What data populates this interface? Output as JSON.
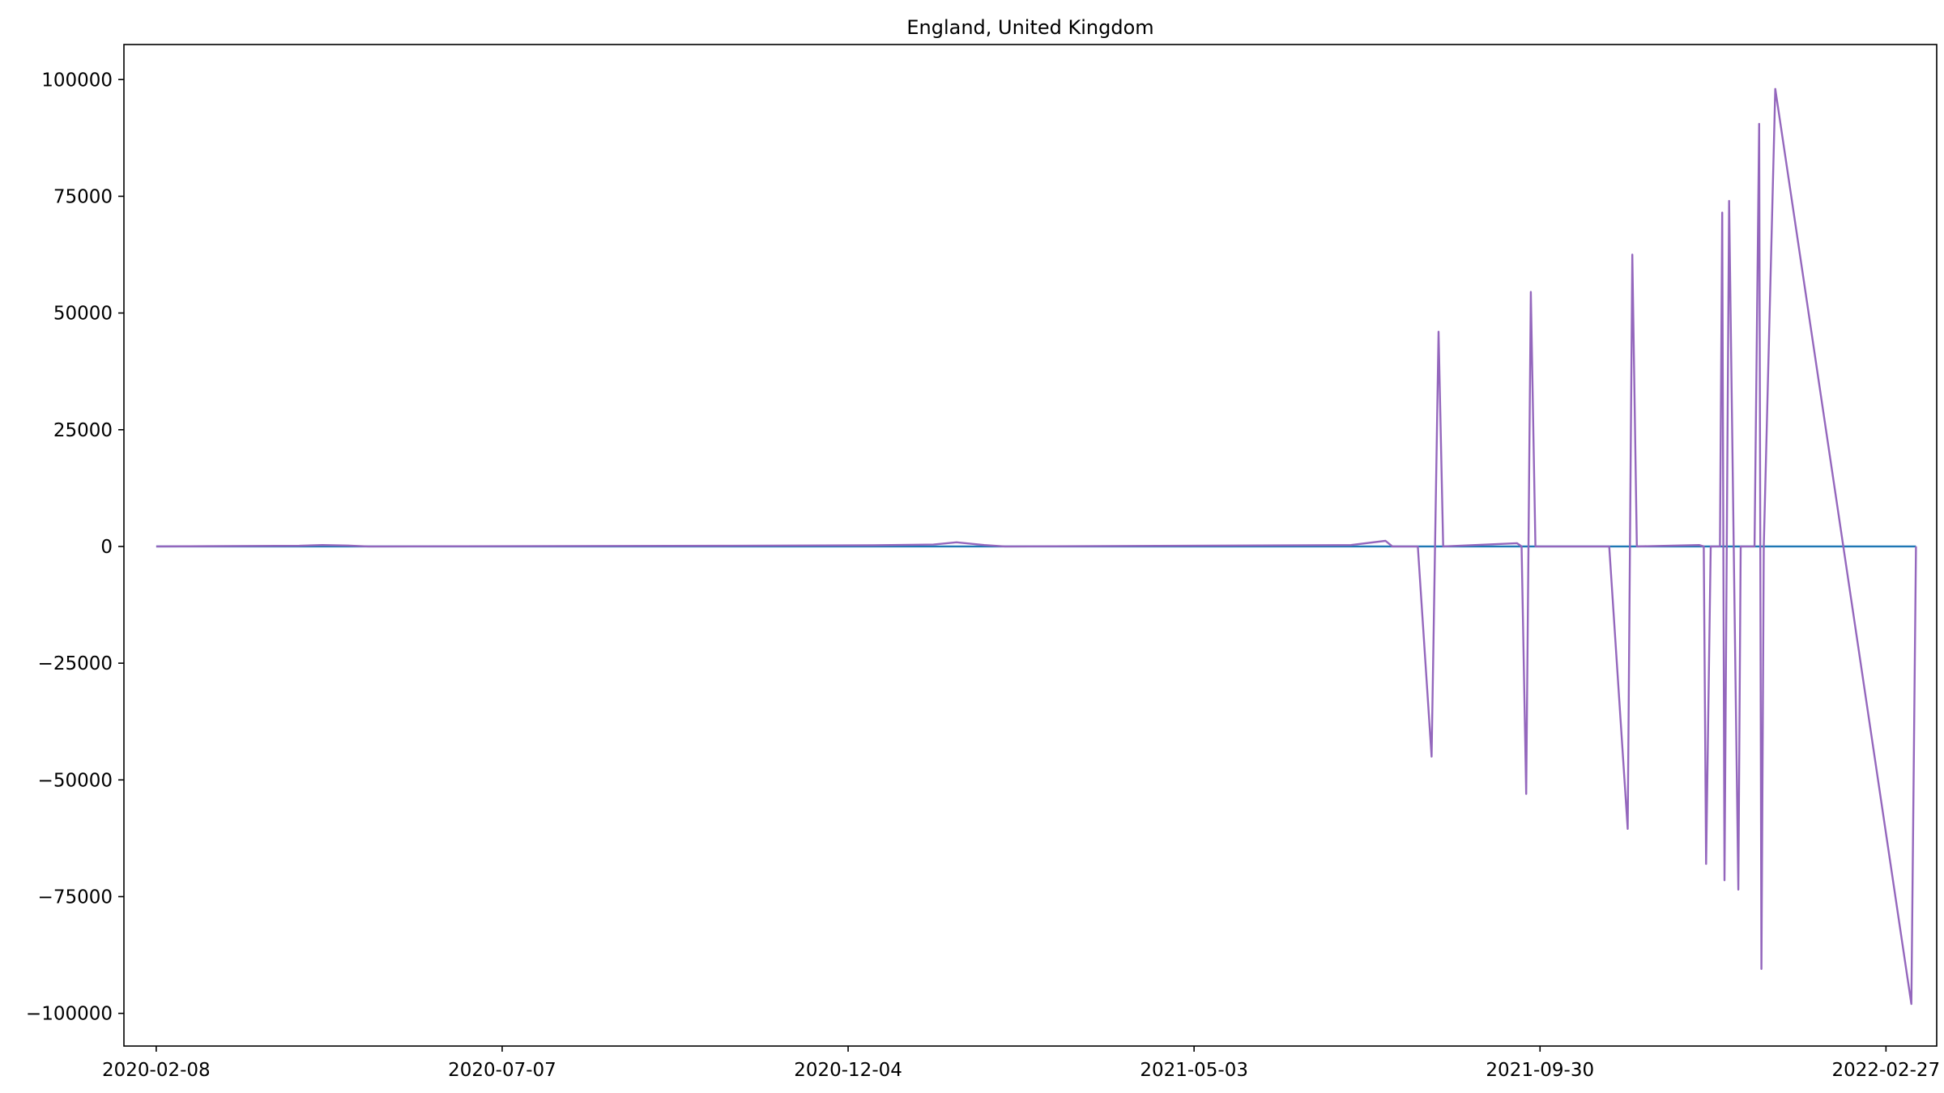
{
  "chart_data": {
    "type": "line",
    "title": "England, United Kingdom",
    "xlabel": "",
    "ylabel": "",
    "x_axis": {
      "type": "date",
      "min": "2020-01-25",
      "max": "2022-03-21",
      "ticks": [
        "2020-02-08",
        "2020-07-07",
        "2020-12-04",
        "2021-05-03",
        "2021-09-30",
        "2022-02-27"
      ]
    },
    "y_axis": {
      "min": -107000,
      "max": 107500,
      "ticks": [
        100000,
        75000,
        50000,
        25000,
        0,
        -25000,
        -50000,
        -75000,
        -100000
      ],
      "tick_labels": [
        "100000",
        "75000",
        "50000",
        "25000",
        "0",
        "−25000",
        "−50000",
        "−75000",
        "−100000"
      ]
    },
    "grid": false,
    "legend": "none",
    "series": [
      {
        "color": "#1f77b4",
        "points": [
          [
            "2020-02-08",
            0
          ],
          [
            "2022-03-12",
            0
          ]
        ]
      },
      {
        "color": "#9467bd",
        "points": [
          [
            "2020-02-08",
            0
          ],
          [
            "2020-04-10",
            150
          ],
          [
            "2020-04-20",
            300
          ],
          [
            "2020-05-01",
            200
          ],
          [
            "2020-05-10",
            0
          ],
          [
            "2020-10-15",
            150
          ],
          [
            "2020-12-15",
            250
          ],
          [
            "2021-01-10",
            400
          ],
          [
            "2021-01-20",
            900
          ],
          [
            "2021-02-01",
            300
          ],
          [
            "2021-02-10",
            0
          ],
          [
            "2021-07-10",
            300
          ],
          [
            "2021-07-25",
            1200
          ],
          [
            "2021-07-28",
            0
          ],
          [
            "2021-08-08",
            0
          ],
          [
            "2021-08-14",
            -45000
          ],
          [
            "2021-08-17",
            46000
          ],
          [
            "2021-08-19",
            0
          ],
          [
            "2021-09-20",
            700
          ],
          [
            "2021-09-22",
            0
          ],
          [
            "2021-09-24",
            -53000
          ],
          [
            "2021-09-26",
            54500
          ],
          [
            "2021-09-28",
            0
          ],
          [
            "2021-10-30",
            0
          ],
          [
            "2021-11-07",
            -60500
          ],
          [
            "2021-11-09",
            62500
          ],
          [
            "2021-11-11",
            0
          ],
          [
            "2021-12-08",
            300
          ],
          [
            "2021-12-10",
            0
          ],
          [
            "2021-12-11",
            -68000
          ],
          [
            "2021-12-13",
            0
          ],
          [
            "2021-12-17",
            0
          ],
          [
            "2021-12-18",
            71500
          ],
          [
            "2021-12-19",
            -71500
          ],
          [
            "2021-12-21",
            74000
          ],
          [
            "2021-12-23",
            0
          ],
          [
            "2021-12-25",
            -73500
          ],
          [
            "2021-12-26",
            0
          ],
          [
            "2022-01-01",
            0
          ],
          [
            "2022-01-03",
            90500
          ],
          [
            "2022-01-04",
            -90500
          ],
          [
            "2022-01-05",
            0
          ],
          [
            "2022-01-10",
            98000
          ],
          [
            "2022-03-10",
            -98000
          ],
          [
            "2022-03-12",
            0
          ]
        ]
      }
    ]
  }
}
